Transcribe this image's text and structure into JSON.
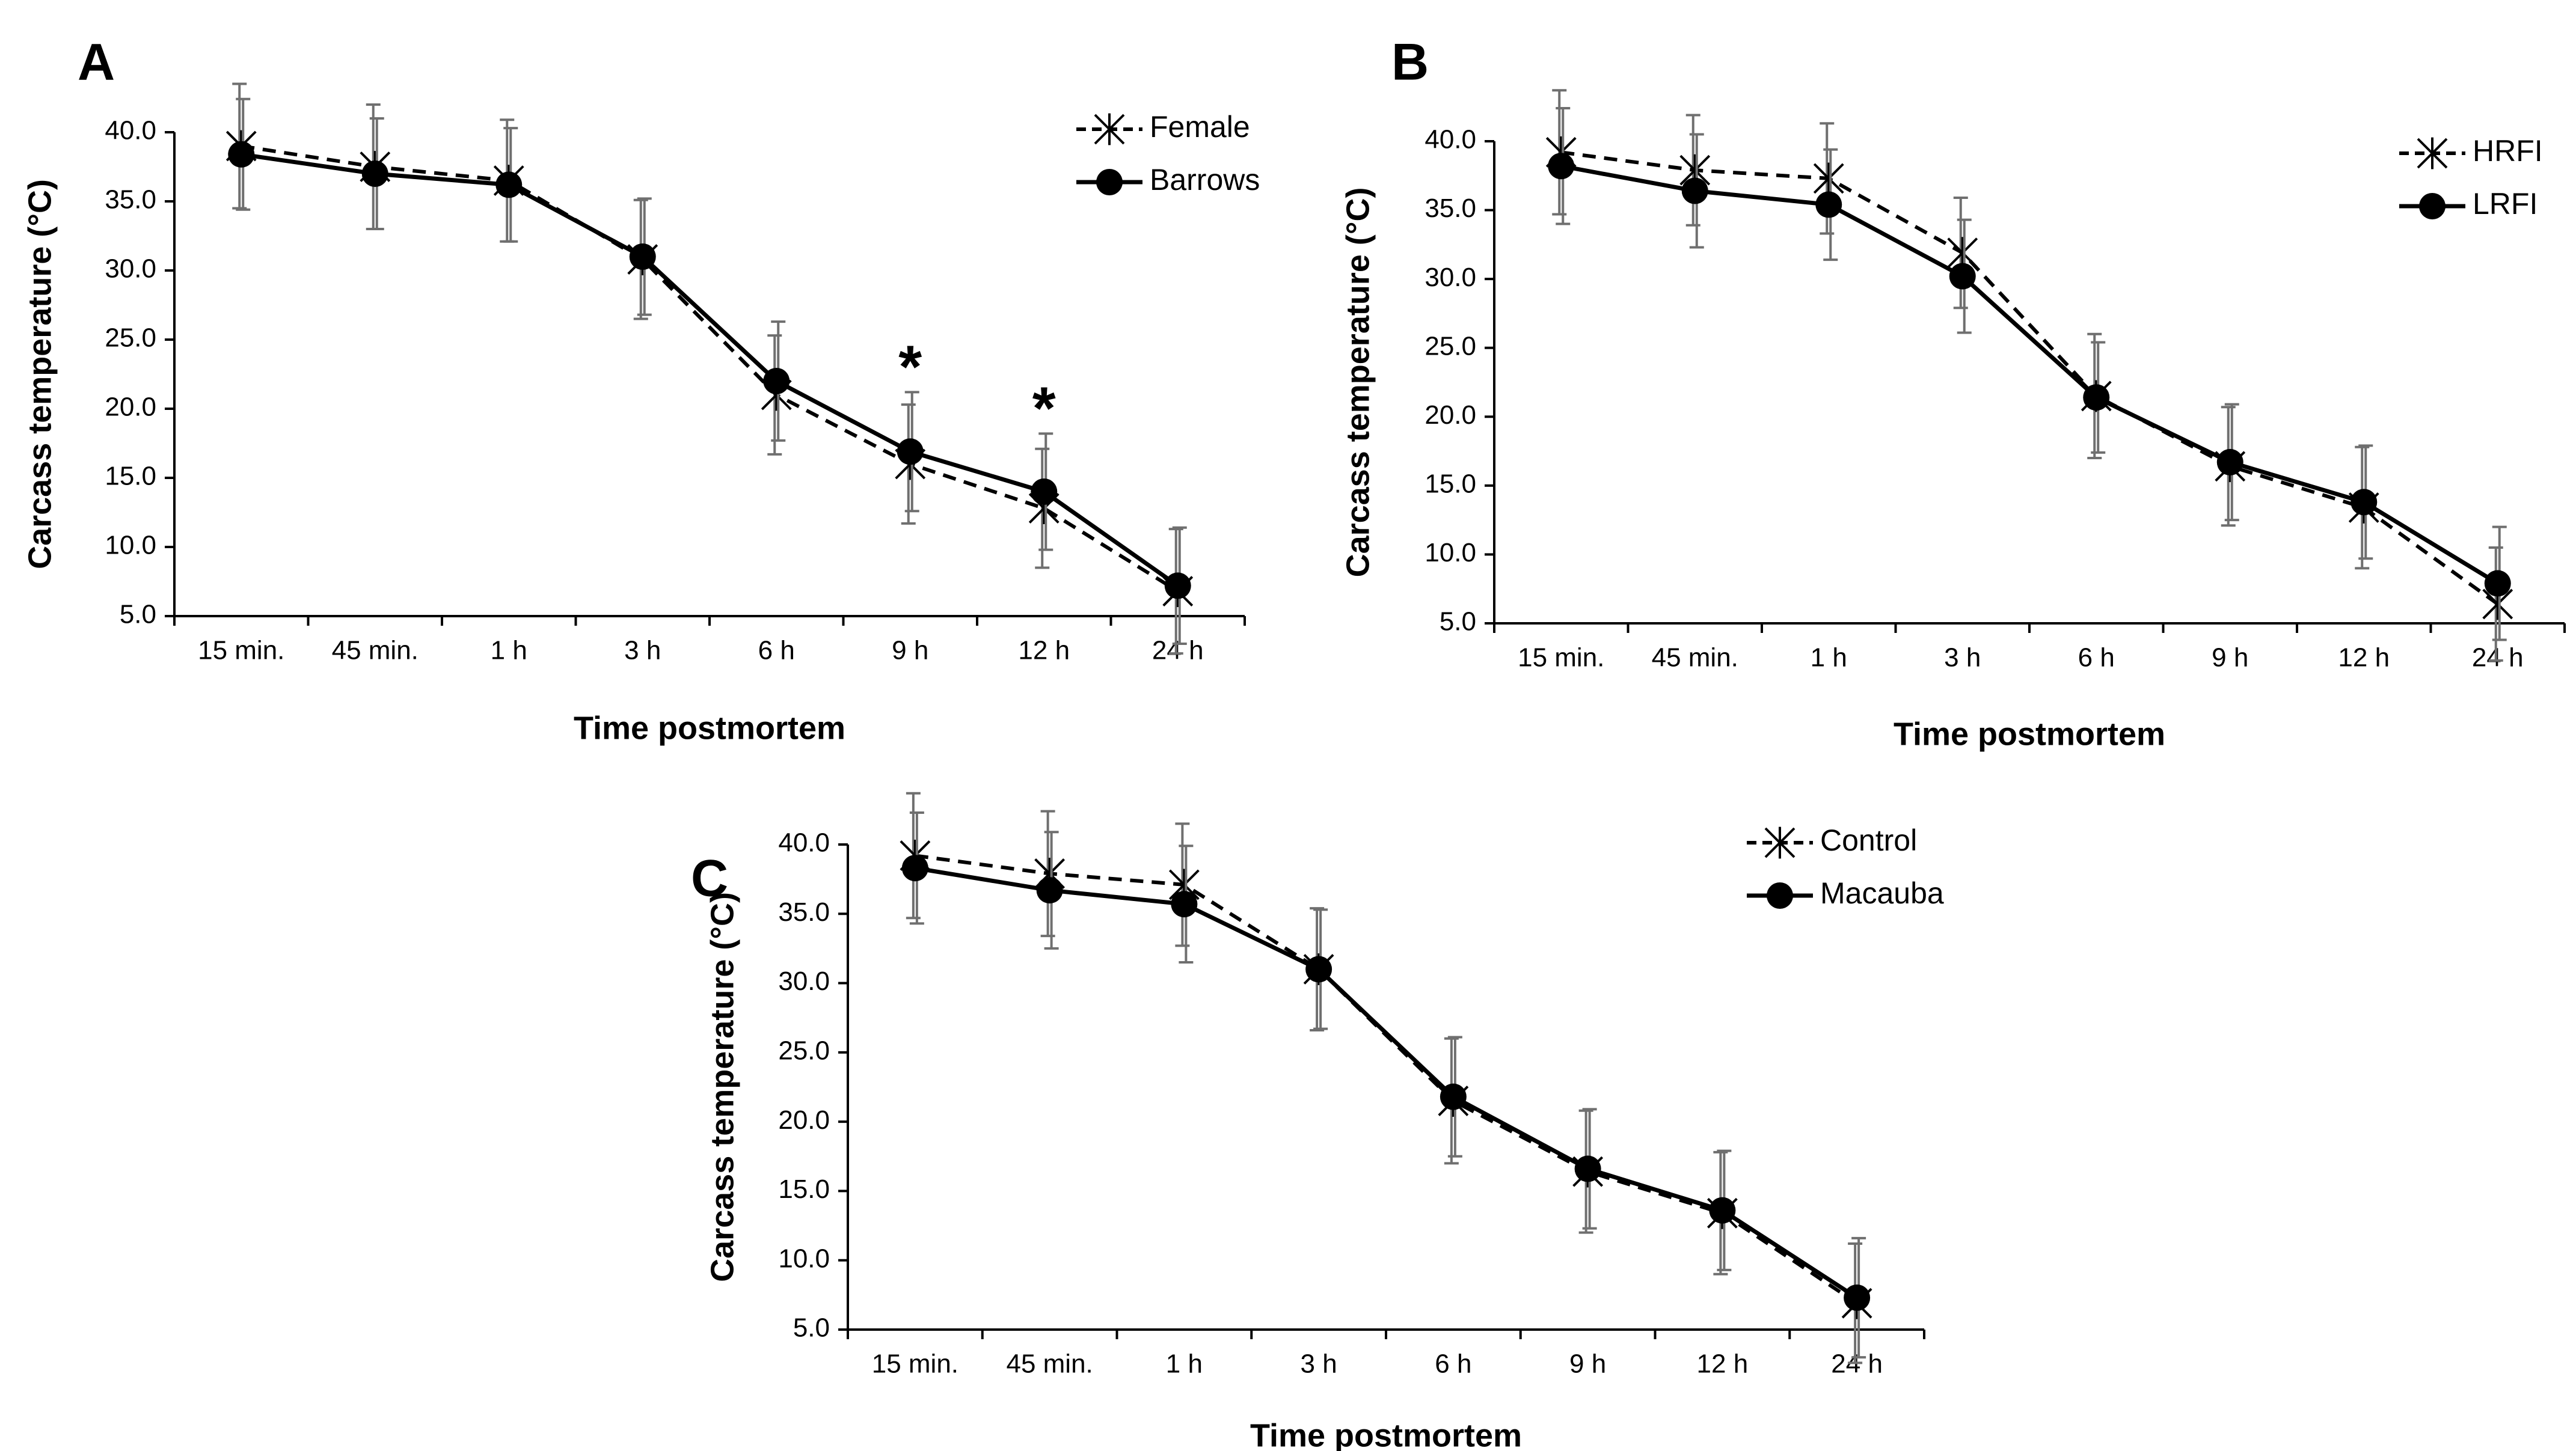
{
  "chart_data": [
    {
      "type": "line",
      "panel": "A",
      "title": "",
      "xlabel": "Time postmortem",
      "ylabel": "Carcass temperature (°C)",
      "ylim": [
        5.0,
        40.0
      ],
      "yticks": [
        "5.0",
        "10.0",
        "15.0",
        "20.0",
        "25.0",
        "30.0",
        "35.0",
        "40.0"
      ],
      "categories": [
        "15 min.",
        "45 min.",
        "1 h",
        "3 h",
        "6 h",
        "9 h",
        "12 h",
        "24 h"
      ],
      "grid": false,
      "legend": "top-right",
      "series": [
        {
          "name": "Female",
          "style": "dashed",
          "marker": "star",
          "values": [
            39.0,
            37.5,
            36.5,
            30.8,
            21.0,
            16.0,
            12.8,
            6.8
          ],
          "err": [
            4.5,
            4.5,
            4.4,
            4.3,
            4.3,
            4.3,
            4.3,
            4.5
          ]
        },
        {
          "name": "Barrows",
          "style": "solid",
          "marker": "circle",
          "values": [
            38.4,
            37.0,
            36.2,
            31.0,
            22.0,
            16.9,
            14.0,
            7.2
          ],
          "err": [
            4.0,
            4.0,
            4.1,
            4.2,
            4.3,
            4.3,
            4.2,
            4.2
          ]
        }
      ],
      "annotations": [
        {
          "category": "9 h",
          "text": "*"
        },
        {
          "category": "12 h",
          "text": "*"
        }
      ]
    },
    {
      "type": "line",
      "panel": "B",
      "title": "",
      "xlabel": "Time postmortem",
      "ylabel": "Carcass temperature (°C)",
      "ylim": [
        5.0,
        40.0
      ],
      "yticks": [
        "5.0",
        "10.0",
        "15.0",
        "20.0",
        "25.0",
        "30.0",
        "35.0",
        "40.0"
      ],
      "categories": [
        "15 min.",
        "45 min.",
        "1 h",
        "3 h",
        "6 h",
        "9 h",
        "12 h",
        "24 h"
      ],
      "grid": false,
      "legend": "top-right",
      "series": [
        {
          "name": "HRFI",
          "style": "dashed",
          "marker": "star",
          "values": [
            39.2,
            37.9,
            37.3,
            31.9,
            21.5,
            16.4,
            13.4,
            6.4
          ],
          "err": [
            4.5,
            4.0,
            4.0,
            4.0,
            4.5,
            4.3,
            4.4,
            4.1
          ]
        },
        {
          "name": "LRFI",
          "style": "solid",
          "marker": "circle",
          "values": [
            38.2,
            36.4,
            35.4,
            30.2,
            21.4,
            16.7,
            13.8,
            7.9
          ],
          "err": [
            4.2,
            4.1,
            4.0,
            4.1,
            4.0,
            4.2,
            4.1,
            4.1
          ]
        }
      ],
      "annotations": []
    },
    {
      "type": "line",
      "panel": "C",
      "title": "",
      "xlabel": "Time postmortem",
      "ylabel": "Carcass temperature (°C)",
      "ylim": [
        5.0,
        40.0
      ],
      "yticks": [
        "5.0",
        "10.0",
        "15.0",
        "20.0",
        "25.0",
        "30.0",
        "35.0",
        "40.0"
      ],
      "categories": [
        "15 min.",
        "45 min.",
        "1 h",
        "3 h",
        "6 h",
        "9 h",
        "12 h",
        "24 h"
      ],
      "grid": false,
      "legend": "top-right",
      "series": [
        {
          "name": "Control",
          "style": "dashed",
          "marker": "star",
          "values": [
            39.2,
            37.9,
            37.1,
            31.0,
            21.5,
            16.4,
            13.4,
            6.9
          ],
          "err": [
            4.5,
            4.5,
            4.4,
            4.4,
            4.5,
            4.4,
            4.4,
            4.3
          ]
        },
        {
          "name": "Macauba",
          "style": "solid",
          "marker": "circle",
          "values": [
            38.3,
            36.7,
            35.7,
            31.0,
            21.8,
            16.6,
            13.6,
            7.3
          ],
          "err": [
            4.0,
            4.2,
            4.2,
            4.3,
            4.3,
            4.3,
            4.3,
            4.3
          ]
        }
      ],
      "annotations": []
    }
  ]
}
